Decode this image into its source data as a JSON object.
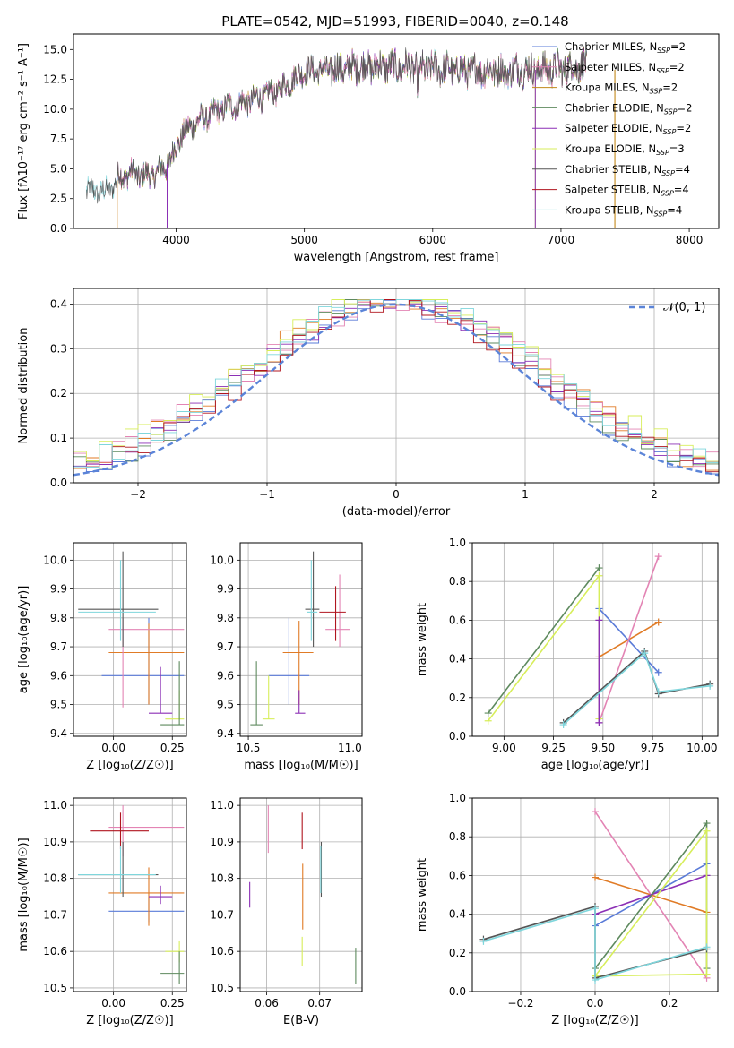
{
  "title": "PLATE=0542, MJD=51993, FIBERID=0040, z=0.148",
  "colors": {
    "Chabrier MILES": "#5a7bd8",
    "Salpeter MILES": "#e07b26",
    "Kroupa MILES": "#c08a1a",
    "Chabrier ELODIE": "#5e8a5e",
    "Salpeter ELODIE": "#8b2fb5",
    "Kroupa ELODIE": "#d7ee5a",
    "Chabrier STELIB": "#555555",
    "Salpeter STELIB": "#b0151f",
    "Kroupa STELIB": "#7fd6dc",
    "pink": "#e384b4",
    "normal": "#5b84d8"
  },
  "chart_data": [
    {
      "type": "line",
      "name": "spectrum",
      "title": "PLATE=0542, MJD=51993, FIBERID=0040, z=0.148",
      "xlabel": "wavelength [Angstrom, rest frame]",
      "ylabel": "Flux [fλ10⁻¹⁷ erg cm⁻² s⁻¹ A⁻¹]",
      "xlim": [
        3200,
        8230
      ],
      "ylim": [
        0,
        16.3
      ],
      "xticks": [
        4000,
        5000,
        6000,
        7000,
        8000
      ],
      "yticks": [
        0.0,
        2.5,
        5.0,
        7.5,
        10.0,
        12.5,
        15.0
      ],
      "grid": false,
      "legend_position": "top-right",
      "legend": [
        {
          "label": "Chabrier MILES, N",
          "sub": "SSP",
          "suffix": "=2",
          "color": "Chabrier MILES"
        },
        {
          "label": "Salpeter MILES, N",
          "sub": "SSP",
          "suffix": "=2",
          "color": "pink"
        },
        {
          "label": "Kroupa MILES, N",
          "sub": "SSP",
          "suffix": "=2",
          "color": "Kroupa MILES"
        },
        {
          "label": "Chabrier ELODIE, N",
          "sub": "SSP",
          "suffix": "=2",
          "color": "Chabrier ELODIE"
        },
        {
          "label": "Salpeter ELODIE, N",
          "sub": "SSP",
          "suffix": "=2",
          "color": "Salpeter ELODIE"
        },
        {
          "label": "Kroupa ELODIE, N",
          "sub": "SSP",
          "suffix": "=3",
          "color": "Kroupa ELODIE"
        },
        {
          "label": "Chabrier STELIB, N",
          "sub": "SSP",
          "suffix": "=4",
          "color": "Chabrier STELIB"
        },
        {
          "label": "Salpeter STELIB, N",
          "sub": "SSP",
          "suffix": "=4",
          "color": "Salpeter STELIB"
        },
        {
          "label": "Kroupa STELIB, N",
          "sub": "SSP",
          "suffix": "=4",
          "color": "Kroupa STELIB"
        }
      ],
      "continuum": {
        "x": [
          3300,
          3450,
          3550,
          3650,
          3750,
          3850,
          3950,
          4050,
          4200,
          4400,
          4600,
          4800,
          5000,
          5200,
          5400,
          5600,
          5800,
          6000,
          6200,
          6400,
          6600,
          6800,
          7000,
          7200
        ],
        "y": [
          3.2,
          3.0,
          4.2,
          4.6,
          4.4,
          4.6,
          5.6,
          8.0,
          9.2,
          10.2,
          10.8,
          11.6,
          13.2,
          13.3,
          13.5,
          13.6,
          13.5,
          13.4,
          13.3,
          13.2,
          13.3,
          13.3,
          13.4,
          13.7
        ]
      },
      "edges": [
        {
          "series": "Salpeter MILES",
          "start": 3540,
          "end": 7420
        },
        {
          "series": "Kroupa ELODIE",
          "start": 3930,
          "end": 6800
        },
        {
          "series": "Salpeter ELODIE",
          "start": 3930,
          "end": 6800
        },
        {
          "series": "Kroupa MILES",
          "start": 3540,
          "end": 7420
        }
      ]
    },
    {
      "type": "step",
      "name": "residuals",
      "xlabel": "(data-model)/error",
      "ylabel": "Normed distribution",
      "xlim": [
        -2.5,
        2.5
      ],
      "ylim": [
        0,
        0.435
      ],
      "xticks": [
        -2,
        -1,
        0,
        1,
        2
      ],
      "yticks": [
        0.0,
        0.1,
        0.2,
        0.3,
        0.4
      ],
      "grid": true,
      "legend_position": "top-right",
      "reference": {
        "label": "𝒩(0, 1)",
        "mean": 0,
        "sigma": 1
      }
    },
    {
      "type": "errorbar",
      "name": "age-vs-Z",
      "xlabel": "Z [log₁₀(Z/Z☉)]",
      "ylabel": "age  [log₁₀(age/yr)]",
      "xlim": [
        -0.17,
        0.31
      ],
      "ylim": [
        9.39,
        10.06
      ],
      "xticks": [
        0.0,
        0.25
      ],
      "yticks": [
        9.4,
        9.5,
        9.6,
        9.7,
        9.8,
        9.9,
        10.0
      ],
      "grid": true,
      "points": [
        {
          "c": "Chabrier MILES",
          "x": 0.15,
          "y": 9.6,
          "xl": -0.05,
          "xh": 0.3,
          "yl": 9.5,
          "yh": 9.8
        },
        {
          "c": "Salpeter MILES",
          "x": 0.15,
          "y": 9.68,
          "xl": -0.02,
          "xh": 0.3,
          "yl": 9.5,
          "yh": 9.78
        },
        {
          "c": "Salpeter ELODIE",
          "x": 0.2,
          "y": 9.47,
          "xl": 0.15,
          "xh": 0.25,
          "yl": 9.47,
          "yh": 9.63
        },
        {
          "c": "Kroupa ELODIE",
          "x": 0.28,
          "y": 9.45,
          "xl": 0.22,
          "xh": 0.3,
          "yl": 9.45,
          "yh": 9.55
        },
        {
          "c": "Chabrier ELODIE",
          "x": 0.28,
          "y": 9.43,
          "xl": 0.2,
          "xh": 0.3,
          "yl": 9.43,
          "yh": 9.65
        },
        {
          "c": "pink",
          "x": 0.04,
          "y": 9.76,
          "xl": -0.02,
          "xh": 0.3,
          "yl": 9.49,
          "yh": 9.8
        },
        {
          "c": "Chabrier STELIB",
          "x": 0.04,
          "y": 9.83,
          "xl": -0.15,
          "xh": 0.19,
          "yl": 9.7,
          "yh": 10.03
        },
        {
          "c": "Kroupa STELIB",
          "x": 0.03,
          "y": 9.82,
          "xl": -0.15,
          "xh": 0.18,
          "yl": 9.72,
          "yh": 10.0
        }
      ]
    },
    {
      "type": "errorbar",
      "name": "age-vs-mass",
      "xlabel": "mass [log₁₀(M/M☉)]",
      "ylabel": "",
      "xlim": [
        10.46,
        11.06
      ],
      "ylim": [
        9.39,
        10.06
      ],
      "xticks": [
        10.5,
        11.0
      ],
      "yticks": [
        9.4,
        9.5,
        9.6,
        9.7,
        9.8,
        9.9,
        10.0
      ],
      "grid": true,
      "points": [
        {
          "c": "Chabrier MILES",
          "x": 10.7,
          "y": 9.6,
          "xl": 10.6,
          "xh": 10.8,
          "yl": 9.5,
          "yh": 9.8
        },
        {
          "c": "Salpeter MILES",
          "x": 10.75,
          "y": 9.68,
          "xl": 10.67,
          "xh": 10.82,
          "yl": 9.5,
          "yh": 9.79
        },
        {
          "c": "Salpeter ELODIE",
          "x": 10.75,
          "y": 9.47,
          "xl": 10.73,
          "xh": 10.78,
          "yl": 9.47,
          "yh": 9.55
        },
        {
          "c": "Kroupa ELODIE",
          "x": 10.6,
          "y": 9.45,
          "xl": 10.57,
          "xh": 10.63,
          "yl": 9.45,
          "yh": 9.6
        },
        {
          "c": "Chabrier ELODIE",
          "x": 10.54,
          "y": 9.43,
          "xl": 10.51,
          "xh": 10.57,
          "yl": 9.43,
          "yh": 9.65
        },
        {
          "c": "pink",
          "x": 10.95,
          "y": 9.76,
          "xl": 10.88,
          "xh": 11.0,
          "yl": 9.7,
          "yh": 9.95
        },
        {
          "c": "Salpeter STELIB",
          "x": 10.93,
          "y": 9.82,
          "xl": 10.85,
          "xh": 10.98,
          "yl": 9.72,
          "yh": 9.91
        },
        {
          "c": "Chabrier STELIB",
          "x": 10.82,
          "y": 9.83,
          "xl": 10.78,
          "xh": 10.85,
          "yl": 9.7,
          "yh": 10.03
        },
        {
          "c": "Kroupa STELIB",
          "x": 10.81,
          "y": 9.82,
          "xl": 10.79,
          "xh": 10.84,
          "yl": 9.72,
          "yh": 10.0
        }
      ]
    },
    {
      "type": "line",
      "name": "mass-weight-vs-age",
      "xlabel": "age  [log₁₀(age/yr)]",
      "ylabel": "mass weight",
      "xlim": [
        8.84,
        10.08
      ],
      "ylim": [
        0,
        1
      ],
      "xticks": [
        9.0,
        9.25,
        9.5,
        9.75,
        10.0
      ],
      "yticks": [
        0.0,
        0.2,
        0.4,
        0.6,
        0.8,
        1.0
      ],
      "grid": true,
      "series": [
        {
          "c": "Chabrier MILES",
          "x": [
            9.48,
            9.78
          ],
          "y": [
            0.66,
            0.33
          ]
        },
        {
          "c": "Salpeter MILES",
          "x": [
            9.48,
            9.78
          ],
          "y": [
            0.41,
            0.59
          ]
        },
        {
          "c": "pink",
          "x": [
            9.48,
            9.78
          ],
          "y": [
            0.07,
            0.93
          ]
        },
        {
          "c": "Chabrier ELODIE",
          "x": [
            8.92,
            9.48
          ],
          "y": [
            0.12,
            0.87
          ]
        },
        {
          "c": "Kroupa ELODIE",
          "x": [
            8.92,
            9.48,
            9.48
          ],
          "y": [
            0.08,
            0.83,
            0.09
          ]
        },
        {
          "c": "Salpeter ELODIE",
          "x": [
            9.48,
            9.48
          ],
          "y": [
            0.07,
            0.6
          ]
        },
        {
          "c": "Chabrier STELIB",
          "x": [
            9.3,
            9.71,
            9.78,
            10.04
          ],
          "y": [
            0.07,
            0.44,
            0.22,
            0.27
          ]
        },
        {
          "c": "Kroupa STELIB",
          "x": [
            9.3,
            9.71,
            9.78,
            10.04
          ],
          "y": [
            0.06,
            0.43,
            0.23,
            0.26
          ]
        }
      ]
    },
    {
      "type": "errorbar",
      "name": "mass-vs-Z",
      "xlabel": "Z [log₁₀(Z/Z☉)]",
      "ylabel": "mass [log₁₀(M/M☉)]",
      "xlim": [
        -0.17,
        0.31
      ],
      "ylim": [
        10.49,
        11.02
      ],
      "xticks": [
        0.0,
        0.25
      ],
      "yticks": [
        10.5,
        10.6,
        10.7,
        10.8,
        10.9,
        11.0
      ],
      "grid": true,
      "points": [
        {
          "c": "Chabrier MILES",
          "x": 0.15,
          "y": 10.71,
          "xl": -0.02,
          "xh": 0.3,
          "yl": 10.68,
          "yh": 10.75
        },
        {
          "c": "Salpeter MILES",
          "x": 0.15,
          "y": 10.76,
          "xl": -0.02,
          "xh": 0.3,
          "yl": 10.67,
          "yh": 10.83
        },
        {
          "c": "Salpeter ELODIE",
          "x": 0.2,
          "y": 10.75,
          "xl": 0.15,
          "xh": 0.25,
          "yl": 10.73,
          "yh": 10.78
        },
        {
          "c": "Kroupa ELODIE",
          "x": 0.28,
          "y": 10.6,
          "xl": 0.22,
          "xh": 0.3,
          "yl": 10.57,
          "yh": 10.63
        },
        {
          "c": "Chabrier ELODIE",
          "x": 0.28,
          "y": 10.54,
          "xl": 0.2,
          "xh": 0.3,
          "yl": 10.51,
          "yh": 10.6
        },
        {
          "c": "pink",
          "x": 0.04,
          "y": 10.94,
          "xl": -0.02,
          "xh": 0.3,
          "yl": 10.86,
          "yh": 11.0
        },
        {
          "c": "Salpeter STELIB",
          "x": 0.03,
          "y": 10.93,
          "xl": -0.1,
          "xh": 0.15,
          "yl": 10.88,
          "yh": 10.98
        },
        {
          "c": "Chabrier STELIB",
          "x": 0.04,
          "y": 10.81,
          "xl": -0.15,
          "xh": 0.19,
          "yl": 10.75,
          "yh": 10.9
        },
        {
          "c": "Kroupa STELIB",
          "x": 0.03,
          "y": 10.81,
          "xl": -0.15,
          "xh": 0.18,
          "yl": 10.76,
          "yh": 10.89
        }
      ]
    },
    {
      "type": "errorbar",
      "name": "mass-vs-EBV",
      "xlabel": "E(B-V)",
      "ylabel": "",
      "xlim": [
        0.055,
        0.078
      ],
      "ylim": [
        10.49,
        11.02
      ],
      "xticks": [
        0.06,
        0.07
      ],
      "yticks": [
        10.5,
        10.6,
        10.7,
        10.8,
        10.9,
        11.0
      ],
      "grid": true,
      "points": [
        {
          "c": "Salpeter ELODIE",
          "x": 0.0568,
          "y": 10.75,
          "xl": 0.0568,
          "xh": 0.0568,
          "yl": 10.72,
          "yh": 10.79
        },
        {
          "c": "pink",
          "x": 0.0603,
          "y": 10.94,
          "xl": 0.0603,
          "xh": 0.0603,
          "yl": 10.87,
          "yh": 11.0
        },
        {
          "c": "Salpeter STELIB",
          "x": 0.0667,
          "y": 10.93,
          "xl": 0.0667,
          "xh": 0.0667,
          "yl": 10.88,
          "yh": 10.98
        },
        {
          "c": "Salpeter MILES",
          "x": 0.0668,
          "y": 10.76,
          "xl": 0.0668,
          "xh": 0.0668,
          "yl": 10.66,
          "yh": 10.84
        },
        {
          "c": "Kroupa ELODIE",
          "x": 0.0667,
          "y": 10.6,
          "xl": 0.0667,
          "xh": 0.0667,
          "yl": 10.56,
          "yh": 10.64
        },
        {
          "c": "Chabrier STELIB",
          "x": 0.0703,
          "y": 10.84,
          "xl": 0.0703,
          "xh": 0.0703,
          "yl": 10.75,
          "yh": 10.9
        },
        {
          "c": "Kroupa STELIB",
          "x": 0.0702,
          "y": 10.82,
          "xl": 0.0702,
          "xh": 0.0702,
          "yl": 10.76,
          "yh": 10.89
        },
        {
          "c": "Chabrier ELODIE",
          "x": 0.0768,
          "y": 10.54,
          "xl": 0.0768,
          "xh": 0.0768,
          "yl": 10.51,
          "yh": 10.61
        }
      ]
    },
    {
      "type": "line",
      "name": "mass-weight-vs-Z",
      "xlabel": "Z [log₁₀(Z/Z☉)]",
      "ylabel": "mass weight",
      "xlim": [
        -0.33,
        0.33
      ],
      "ylim": [
        0,
        1
      ],
      "xticks": [
        -0.2,
        0.0,
        0.2
      ],
      "yticks": [
        0.0,
        0.2,
        0.4,
        0.6,
        0.8,
        1.0
      ],
      "grid": true,
      "series": [
        {
          "c": "Chabrier MILES",
          "x": [
            0.0,
            0.3
          ],
          "y": [
            0.34,
            0.66
          ]
        },
        {
          "c": "Salpeter MILES",
          "x": [
            0.0,
            0.3
          ],
          "y": [
            0.59,
            0.41
          ]
        },
        {
          "c": "pink",
          "x": [
            0.0,
            0.3
          ],
          "y": [
            0.93,
            0.07
          ]
        },
        {
          "c": "Salpeter ELODIE",
          "x": [
            0.0,
            0.3
          ],
          "y": [
            0.4,
            0.6
          ]
        },
        {
          "c": "Chabrier ELODIE",
          "x": [
            0.0,
            0.3,
            0.3
          ],
          "y": [
            0.12,
            0.87,
            0.12
          ]
        },
        {
          "c": "Kroupa ELODIE",
          "x": [
            0.0,
            0.3,
            0.3,
            0.0
          ],
          "y": [
            0.08,
            0.83,
            0.09,
            0.08
          ]
        },
        {
          "c": "Chabrier STELIB",
          "x": [
            -0.3,
            0.0,
            0.0,
            0.3
          ],
          "y": [
            0.27,
            0.44,
            0.07,
            0.22
          ]
        },
        {
          "c": "Kroupa STELIB",
          "x": [
            -0.3,
            0.0,
            0.0,
            0.3
          ],
          "y": [
            0.26,
            0.43,
            0.06,
            0.23
          ]
        }
      ]
    }
  ]
}
